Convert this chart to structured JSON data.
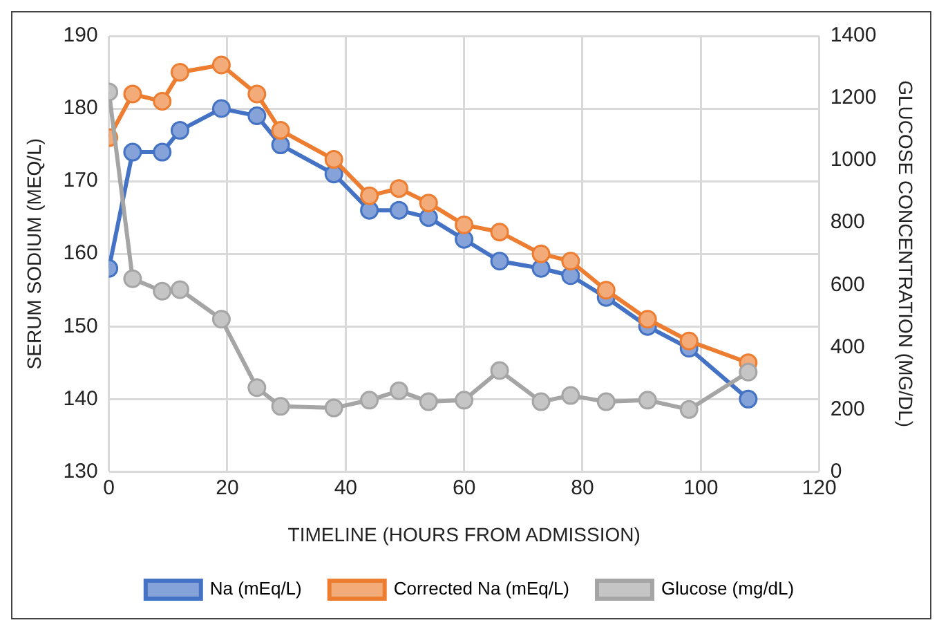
{
  "chart_data": {
    "type": "line",
    "xlabel": "TIMELINE (HOURS FROM ADMISSION)",
    "ylabel": "SERUM SODIUM (MEQ/L)",
    "y2label": "GLUCOSE CONCENTRATION (MG/DL)",
    "x": [
      0,
      4,
      9,
      12,
      19,
      25,
      29,
      38,
      44,
      49,
      54,
      60,
      66,
      73,
      78,
      84,
      91,
      98,
      108
    ],
    "series": [
      {
        "name": "Na (mEq/L)",
        "color": "#4472c4",
        "values": [
          158,
          174,
          174,
          177,
          180,
          179,
          175,
          171,
          166,
          166,
          165,
          162,
          159,
          158,
          157,
          154,
          150,
          147,
          140
        ]
      },
      {
        "name": "Corrected Na (mEq/L)",
        "color": "#ed7d31",
        "values": [
          176,
          182,
          181,
          185,
          186,
          182,
          177,
          173,
          168,
          169,
          167,
          164,
          163,
          160,
          159,
          155,
          151,
          148,
          145
        ]
      },
      {
        "name": "Glucose (mg/dL)",
        "color": "#a5a5a5",
        "axis": "y2",
        "values": [
          1220,
          620,
          580,
          585,
          490,
          270,
          210,
          205,
          230,
          260,
          225,
          230,
          325,
          225,
          245,
          225,
          230,
          200,
          320
        ]
      }
    ],
    "xlim": [
      0,
      120
    ],
    "xticks": [
      0,
      20,
      40,
      60,
      80,
      100,
      120
    ],
    "ylim": [
      130,
      190
    ],
    "yticks": [
      130,
      140,
      150,
      160,
      170,
      180,
      190
    ],
    "y2lim": [
      0,
      1400
    ],
    "y2ticks": [
      0,
      200,
      400,
      600,
      800,
      1000,
      1200,
      1400
    ],
    "grid": true,
    "legend": "bottom",
    "marker": "circle",
    "line_style": "solid"
  }
}
